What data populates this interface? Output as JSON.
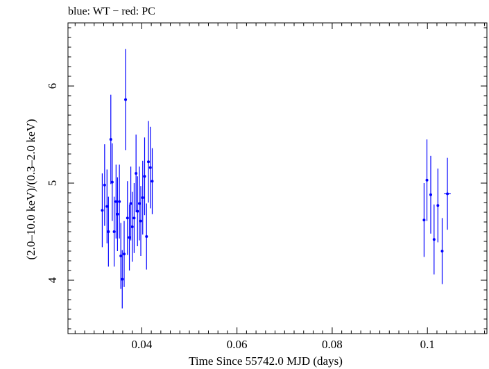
{
  "chart_data": {
    "type": "scatter",
    "title": "blue: WT − red: PC",
    "xlabel": "Time Since 55742.0 MJD (days)",
    "ylabel": "(2.0–10.0 keV)/(0.3–2.0 keV)",
    "xlim": [
      0.0245,
      0.1125
    ],
    "ylim": [
      3.45,
      6.65
    ],
    "xticks": [
      {
        "value": 0.04,
        "label": "0.04"
      },
      {
        "value": 0.06,
        "label": "0.06"
      },
      {
        "value": 0.08,
        "label": "0.08"
      },
      {
        "value": 0.1,
        "label": "0.1"
      }
    ],
    "yticks": [
      {
        "value": 4,
        "label": "4"
      },
      {
        "value": 5,
        "label": "5"
      },
      {
        "value": 6,
        "label": "6"
      }
    ],
    "grid": false,
    "series": [
      {
        "color": "#0000ff",
        "points": [
          {
            "x": 0.0317,
            "y": 4.72,
            "yerr": 0.38
          },
          {
            "x": 0.0322,
            "y": 4.98,
            "yerr": 0.42
          },
          {
            "x": 0.0327,
            "y": 4.76,
            "yerr": 0.38
          },
          {
            "x": 0.033,
            "y": 4.5,
            "yerr": 0.36
          },
          {
            "x": 0.0335,
            "y": 5.45,
            "yerr": 0.46
          },
          {
            "x": 0.0338,
            "y": 5.01,
            "yerr": 0.4
          },
          {
            "x": 0.0342,
            "y": 4.5,
            "yerr": 0.36
          },
          {
            "x": 0.0346,
            "y": 4.81,
            "yerr": 0.38
          },
          {
            "x": 0.0349,
            "y": 4.68,
            "yerr": 0.38
          },
          {
            "x": 0.0353,
            "y": 4.81,
            "yerr": 0.38
          },
          {
            "x": 0.0356,
            "y": 4.25,
            "yerr": 0.34
          },
          {
            "x": 0.0359,
            "y": 4.01,
            "yerr": 0.3
          },
          {
            "x": 0.0363,
            "y": 4.27,
            "yerr": 0.34
          },
          {
            "x": 0.0366,
            "y": 5.86,
            "yerr": 0.52
          },
          {
            "x": 0.037,
            "y": 4.64,
            "yerr": 0.38
          },
          {
            "x": 0.0374,
            "y": 4.44,
            "yerr": 0.34
          },
          {
            "x": 0.0377,
            "y": 4.79,
            "yerr": 0.38
          },
          {
            "x": 0.038,
            "y": 4.55,
            "yerr": 0.36
          },
          {
            "x": 0.0384,
            "y": 4.64,
            "yerr": 0.36
          },
          {
            "x": 0.0388,
            "y": 5.1,
            "yerr": 0.4
          },
          {
            "x": 0.0391,
            "y": 4.71,
            "yerr": 0.36
          },
          {
            "x": 0.0395,
            "y": 4.79,
            "yerr": 0.38
          },
          {
            "x": 0.0398,
            "y": 4.61,
            "yerr": 0.36
          },
          {
            "x": 0.0402,
            "y": 4.85,
            "yerr": 0.38
          },
          {
            "x": 0.0406,
            "y": 5.07,
            "yerr": 0.4
          },
          {
            "x": 0.041,
            "y": 4.45,
            "yerr": 0.34
          },
          {
            "x": 0.0414,
            "y": 5.22,
            "yerr": 0.42
          },
          {
            "x": 0.0418,
            "y": 5.16,
            "yerr": 0.42
          },
          {
            "x": 0.0422,
            "y": 5.02,
            "yerr": 0.34
          },
          {
            "x": 0.0993,
            "y": 4.62,
            "yerr": 0.38
          },
          {
            "x": 0.0999,
            "y": 5.03,
            "yerr": 0.42
          },
          {
            "x": 0.1007,
            "y": 4.88,
            "yerr": 0.4
          },
          {
            "x": 0.1014,
            "y": 4.42,
            "yerr": 0.36
          },
          {
            "x": 0.1022,
            "y": 4.77,
            "yerr": 0.38
          },
          {
            "x": 0.1031,
            "y": 4.3,
            "yerr": 0.34
          },
          {
            "x": 0.1042,
            "y": 4.89,
            "yerr": 0.37,
            "xerr": 0.0007
          }
        ]
      }
    ]
  }
}
